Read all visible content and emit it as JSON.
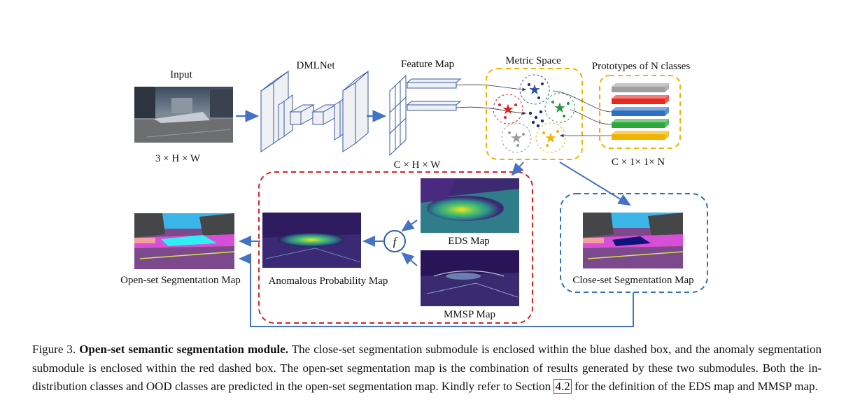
{
  "figure": {
    "input_label": "Input",
    "input_dims": "3 × H × W",
    "dmlnet_label": "DMLNet",
    "feature_map_label": "Feature Map",
    "feature_dims": "C × H × W",
    "metric_space_label": "Metric Space",
    "prototypes_label": "Prototypes of N classes",
    "prototype_dims": "C × 1× 1× N",
    "prototype_colors": [
      "#a0a0a0",
      "#e8281e",
      "#2e6fc2",
      "#2aa83a",
      "#f0b400"
    ],
    "class_colors": {
      "blue": "#2e4fa0",
      "red": "#e02020",
      "green": "#1f9a3a",
      "gray": "#9a9a9a",
      "yellow": "#f0b400"
    },
    "fusion_symbol": "f",
    "eds_label": "EDS Map",
    "mmsp_label": "MMSP Map",
    "anomalous_label": "Anomalous Probability Map",
    "open_set_label": "Open-set Segmentation Map",
    "close_set_label": "Close-set Segmentation Map"
  },
  "caption": {
    "label": "Figure 3.",
    "title": "Open-set semantic segmentation module.",
    "text_before_ref": "The close-set segmentation submodule is enclosed within the blue dashed box, and the anomaly segmentation submodule is enclosed within the red dashed box. The open-set segmentation map is the combination of results generated by these two submodules. Both the in-distribution classes and OOD classes are predicted in the open-set segmentation map. Kindly refer to Section",
    "ref": "4.2",
    "text_after_ref": "for the definition of the EDS map and MMSP map."
  }
}
